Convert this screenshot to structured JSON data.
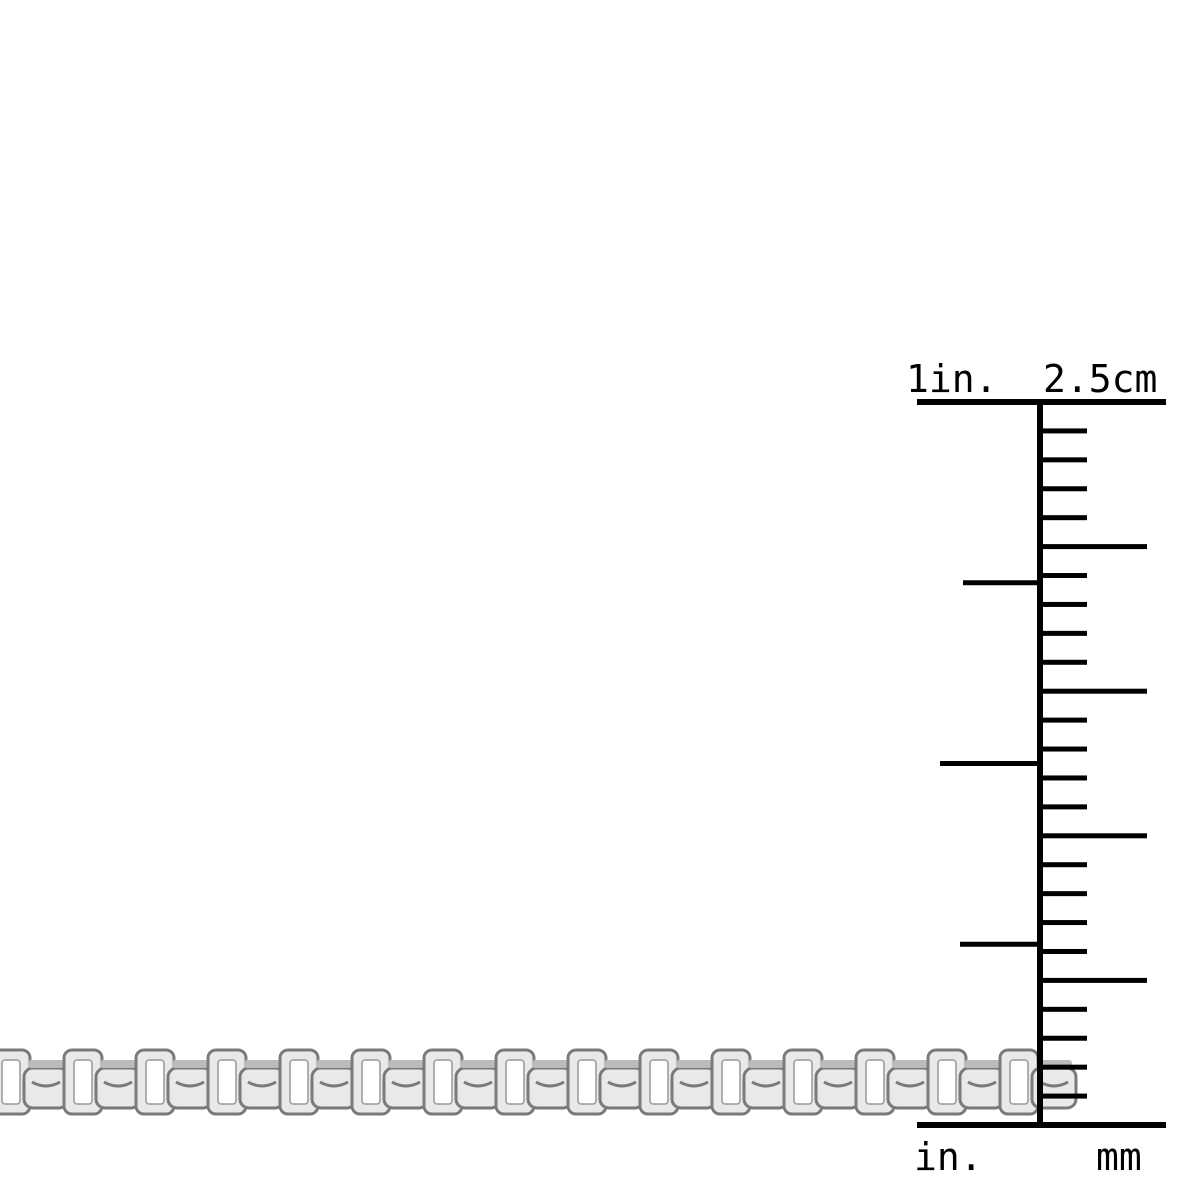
{
  "ruler": {
    "top_left_label": "1in.",
    "top_right_label": "2.5cm",
    "bottom_left_label": "in.",
    "bottom_right_label": "mm",
    "inch_span": 1,
    "cm_span": 2.5,
    "mm_ticks": 25,
    "inch_subdivisions": 4,
    "color": "#000000"
  },
  "chain": {
    "style": "box chain",
    "metal_color": "#e9e9e9",
    "shadow_color": "#7a7a7a"
  }
}
